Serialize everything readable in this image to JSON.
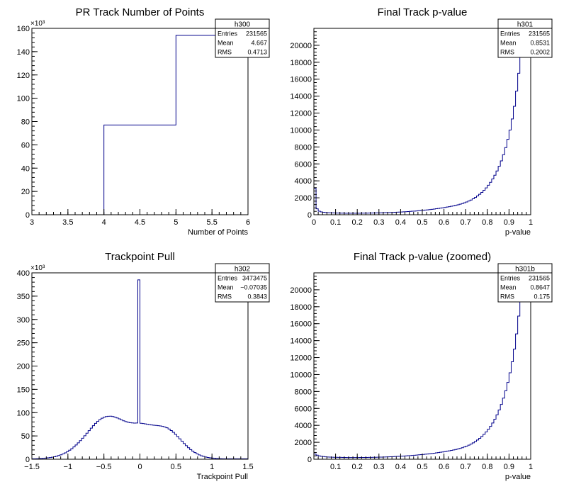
{
  "chart_data": [
    {
      "type": "bar",
      "title": "PR Track Number of Points",
      "xlabel": "Number of Points",
      "ylabel": "",
      "y_multiplier_label": "×10³",
      "xlim": [
        3,
        6
      ],
      "ylim": [
        0,
        160
      ],
      "x_ticks": [
        3,
        3.5,
        4,
        4.5,
        5,
        5.5,
        6
      ],
      "x_tick_labels": [
        "3",
        "3.5",
        "4",
        "4.5",
        "5",
        "5.5",
        "6"
      ],
      "y_ticks": [
        0,
        20,
        40,
        60,
        80,
        100,
        120,
        140,
        160
      ],
      "y_tick_labels": [
        "0",
        "20",
        "40",
        "60",
        "80",
        "100",
        "120",
        "140",
        "160"
      ],
      "bin_edges": [
        4,
        5,
        6
      ],
      "values": [
        77,
        154
      ],
      "stats": {
        "name": "h300",
        "rows": [
          {
            "label": "Entries",
            "value": "231565"
          },
          {
            "label": "Mean",
            "value": "4.667"
          },
          {
            "label": "RMS",
            "value": "0.4713"
          }
        ]
      }
    },
    {
      "type": "bar",
      "title": "Final Track p-value",
      "xlabel": "p-value",
      "ylabel": "",
      "xlim": [
        0,
        1
      ],
      "ylim": [
        0,
        22000
      ],
      "x_ticks": [
        0,
        0.1,
        0.2,
        0.3,
        0.4,
        0.5,
        0.6,
        0.7,
        0.8,
        0.9,
        1
      ],
      "x_tick_labels": [
        "0",
        "0.1",
        "0.2",
        "0.3",
        "0.4",
        "0.5",
        "0.6",
        "0.7",
        "0.8",
        "0.9",
        "1"
      ],
      "y_ticks": [
        0,
        2000,
        4000,
        6000,
        8000,
        10000,
        12000,
        14000,
        16000,
        18000,
        20000
      ],
      "y_tick_labels": [
        "0",
        "2000",
        "4000",
        "6000",
        "8000",
        "10000",
        "12000",
        "14000",
        "16000",
        "18000",
        "20000"
      ],
      "bin_edges": [
        0,
        0.01,
        0.02,
        0.03,
        0.04,
        0.05,
        0.06,
        0.07,
        0.08,
        0.09,
        0.1,
        0.11,
        0.12,
        0.13,
        0.14,
        0.15,
        0.16,
        0.17,
        0.18,
        0.19,
        0.2,
        0.21,
        0.22,
        0.23,
        0.24,
        0.25,
        0.26,
        0.27,
        0.28,
        0.29,
        0.3,
        0.31,
        0.32,
        0.33,
        0.34,
        0.35,
        0.36,
        0.37,
        0.38,
        0.39,
        0.4,
        0.41,
        0.42,
        0.43,
        0.44,
        0.45,
        0.46,
        0.47,
        0.48,
        0.49,
        0.5,
        0.51,
        0.52,
        0.53,
        0.54,
        0.55,
        0.56,
        0.57,
        0.58,
        0.59,
        0.6,
        0.61,
        0.62,
        0.63,
        0.64,
        0.65,
        0.66,
        0.67,
        0.68,
        0.69,
        0.7,
        0.71,
        0.72,
        0.73,
        0.74,
        0.75,
        0.76,
        0.77,
        0.78,
        0.79,
        0.8,
        0.81,
        0.82,
        0.83,
        0.84,
        0.85,
        0.86,
        0.87,
        0.88,
        0.89,
        0.9,
        0.91,
        0.92,
        0.93,
        0.94,
        0.95,
        0.96,
        0.97,
        0.98,
        0.99,
        1
      ],
      "values": [
        3100,
        700,
        420,
        330,
        290,
        260,
        240,
        230,
        220,
        210,
        200,
        195,
        190,
        185,
        180,
        178,
        176,
        175,
        175,
        176,
        178,
        180,
        183,
        186,
        190,
        194,
        199,
        204,
        210,
        216,
        222,
        230,
        238,
        247,
        256,
        266,
        277,
        289,
        301,
        314,
        328,
        343,
        359,
        376,
        394,
        413,
        433,
        454,
        476,
        500,
        525,
        551,
        579,
        608,
        639,
        672,
        706,
        742,
        780,
        820,
        862,
        906,
        952,
        1000,
        1050,
        1110,
        1170,
        1240,
        1320,
        1410,
        1510,
        1620,
        1740,
        1880,
        2040,
        2220,
        2420,
        2640,
        2890,
        3170,
        3480,
        3830,
        4220,
        4660,
        5160,
        5720,
        6360,
        7090,
        7930,
        8900,
        10000,
        11300,
        12800,
        14600,
        16700,
        19200,
        22000,
        22000,
        22000,
        22000
      ],
      "stats": {
        "name": "h301",
        "rows": [
          {
            "label": "Entries",
            "value": "231565"
          },
          {
            "label": "Mean",
            "value": "0.8531"
          },
          {
            "label": "RMS",
            "value": "0.2002"
          }
        ]
      }
    },
    {
      "type": "bar",
      "title": "Trackpoint Pull",
      "xlabel": "Trackpoint Pull",
      "ylabel": "",
      "y_multiplier_label": "×10³",
      "xlim": [
        -1.5,
        1.5
      ],
      "ylim": [
        0,
        400
      ],
      "x_ticks": [
        -1.5,
        -1,
        -0.5,
        0,
        0.5,
        1,
        1.5
      ],
      "x_tick_labels": [
        "−1.5",
        "−1",
        "−0.5",
        "0",
        "0.5",
        "1",
        "1.5"
      ],
      "y_ticks": [
        0,
        50,
        100,
        150,
        200,
        250,
        300,
        350,
        400
      ],
      "y_tick_labels": [
        "0",
        "50",
        "100",
        "150",
        "200",
        "250",
        "300",
        "350",
        "400"
      ],
      "bin_edges": [
        -1.5,
        -1.47,
        -1.44,
        -1.41,
        -1.38,
        -1.35,
        -1.32,
        -1.29,
        -1.26,
        -1.23,
        -1.2,
        -1.17,
        -1.14,
        -1.11,
        -1.08,
        -1.05,
        -1.02,
        -0.99,
        -0.96,
        -0.93,
        -0.9,
        -0.87,
        -0.84,
        -0.81,
        -0.78,
        -0.75,
        -0.72,
        -0.69,
        -0.66,
        -0.63,
        -0.6,
        -0.57,
        -0.54,
        -0.51,
        -0.48,
        -0.45,
        -0.42,
        -0.39,
        -0.36,
        -0.33,
        -0.3,
        -0.27,
        -0.24,
        -0.21,
        -0.18,
        -0.15,
        -0.12,
        -0.09,
        -0.06,
        -0.03,
        0,
        0.03,
        0.06,
        0.09,
        0.12,
        0.15,
        0.18,
        0.21,
        0.24,
        0.27,
        0.3,
        0.33,
        0.36,
        0.39,
        0.42,
        0.45,
        0.48,
        0.51,
        0.54,
        0.57,
        0.6,
        0.63,
        0.66,
        0.69,
        0.72,
        0.75,
        0.78,
        0.81,
        0.84,
        0.87,
        0.9,
        0.93,
        0.96,
        0.99,
        1.02,
        1.05,
        1.08,
        1.11,
        1.14,
        1.17,
        1.2,
        1.23,
        1.26,
        1.29,
        1.32,
        1.35,
        1.38,
        1.41,
        1.44,
        1.47,
        1.5
      ],
      "values": [
        1,
        1,
        1.2,
        1.4,
        1.7,
        2,
        2.5,
        3,
        3.6,
        4.4,
        5.4,
        6.5,
        8,
        9.5,
        11.5,
        13.7,
        16.3,
        19.3,
        22.6,
        26.4,
        30.6,
        35.1,
        40,
        45,
        50.4,
        55.9,
        61.4,
        66.8,
        72.1,
        77,
        81.2,
        84.9,
        88,
        90.3,
        91.6,
        92.2,
        92.3,
        91.6,
        90.3,
        88.6,
        86.6,
        84.5,
        82.6,
        80.8,
        79.5,
        78.5,
        77.9,
        77.6,
        77.7,
        385,
        77.1,
        76.6,
        75.9,
        74.9,
        74.2,
        73.5,
        73,
        72.6,
        72.1,
        71.5,
        70.6,
        69.3,
        67.5,
        64.8,
        61.6,
        57.8,
        53.4,
        48.7,
        43.7,
        38.7,
        33.7,
        29,
        24.7,
        20.8,
        17.3,
        14.2,
        11.6,
        9.4,
        7.5,
        6,
        4.8,
        3.8,
        3,
        2.4,
        2,
        1.6,
        1.4,
        1.2,
        1,
        1,
        1,
        1,
        1,
        1,
        1,
        1,
        1,
        1,
        1,
        1
      ],
      "stats": {
        "name": "h302",
        "rows": [
          {
            "label": "Entries",
            "value": "3473475"
          },
          {
            "label": "Mean",
            "value": "−0.07035"
          },
          {
            "label": "RMS",
            "value": "0.3843"
          }
        ]
      }
    },
    {
      "type": "bar",
      "title": "Final Track p-value (zoomed)",
      "xlabel": "p-value",
      "ylabel": "",
      "xlim": [
        0,
        1
      ],
      "ylim": [
        0,
        22000
      ],
      "x_ticks": [
        0.1,
        0.2,
        0.3,
        0.4,
        0.5,
        0.6,
        0.7,
        0.8,
        0.9,
        1
      ],
      "x_tick_labels": [
        "0.1",
        "0.2",
        "0.3",
        "0.4",
        "0.5",
        "0.6",
        "0.7",
        "0.8",
        "0.9",
        "1"
      ],
      "y_ticks": [
        0,
        2000,
        4000,
        6000,
        8000,
        10000,
        12000,
        14000,
        16000,
        18000,
        20000
      ],
      "y_tick_labels": [
        "0",
        "2000",
        "4000",
        "6000",
        "8000",
        "10000",
        "12000",
        "14000",
        "16000",
        "18000",
        "20000"
      ],
      "bin_edges": [
        0,
        0.01,
        0.02,
        0.03,
        0.04,
        0.05,
        0.06,
        0.07,
        0.08,
        0.09,
        0.1,
        0.11,
        0.12,
        0.13,
        0.14,
        0.15,
        0.16,
        0.17,
        0.18,
        0.19,
        0.2,
        0.21,
        0.22,
        0.23,
        0.24,
        0.25,
        0.26,
        0.27,
        0.28,
        0.29,
        0.3,
        0.31,
        0.32,
        0.33,
        0.34,
        0.35,
        0.36,
        0.37,
        0.38,
        0.39,
        0.4,
        0.41,
        0.42,
        0.43,
        0.44,
        0.45,
        0.46,
        0.47,
        0.48,
        0.49,
        0.5,
        0.51,
        0.52,
        0.53,
        0.54,
        0.55,
        0.56,
        0.57,
        0.58,
        0.59,
        0.6,
        0.61,
        0.62,
        0.63,
        0.64,
        0.65,
        0.66,
        0.67,
        0.68,
        0.69,
        0.7,
        0.71,
        0.72,
        0.73,
        0.74,
        0.75,
        0.76,
        0.77,
        0.78,
        0.79,
        0.8,
        0.81,
        0.82,
        0.83,
        0.84,
        0.85,
        0.86,
        0.87,
        0.88,
        0.89,
        0.9,
        0.91,
        0.92,
        0.93,
        0.94,
        0.95,
        0.96,
        0.97,
        0.98,
        0.99,
        1
      ],
      "values": [
        620,
        480,
        400,
        350,
        310,
        285,
        265,
        250,
        240,
        232,
        225,
        220,
        215,
        210,
        205,
        202,
        200,
        199,
        199,
        200,
        202,
        204,
        207,
        210,
        214,
        218,
        223,
        229,
        235,
        241,
        248,
        256,
        265,
        275,
        285,
        296,
        308,
        320,
        333,
        347,
        362,
        378,
        395,
        413,
        432,
        452,
        473,
        495,
        518,
        542,
        567,
        593,
        621,
        650,
        681,
        714,
        748,
        784,
        822,
        862,
        904,
        948,
        994,
        1042,
        1094,
        1150,
        1210,
        1280,
        1360,
        1450,
        1550,
        1660,
        1790,
        1930,
        2090,
        2270,
        2470,
        2690,
        2940,
        3220,
        3530,
        3880,
        4280,
        4730,
        5240,
        5810,
        6470,
        7220,
        8080,
        9070,
        10200,
        11500,
        13000,
        14800,
        16900,
        19400,
        22000,
        22000,
        22000,
        22000
      ],
      "stats": {
        "name": "h301b",
        "rows": [
          {
            "label": "Entries",
            "value": "231565"
          },
          {
            "label": "Mean",
            "value": "0.8647"
          },
          {
            "label": "RMS",
            "value": "0.175"
          }
        ]
      }
    }
  ],
  "colors": {
    "line": "#00008b",
    "frame": "#000000",
    "text": "#000000",
    "background": "#ffffff"
  }
}
